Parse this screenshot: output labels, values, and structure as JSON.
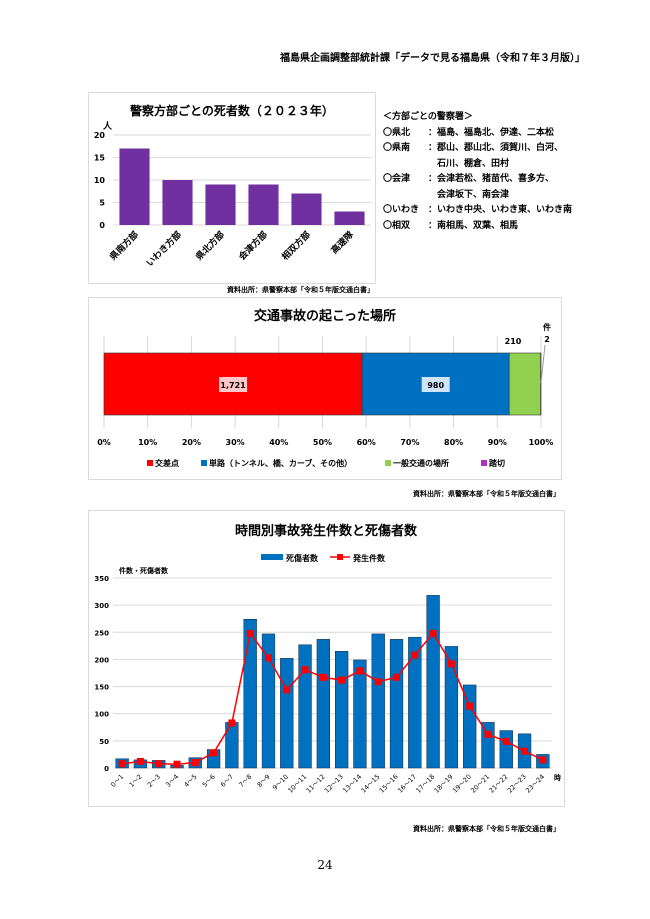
{
  "header": "福島県企画調整部統計課「データで見る福島県（令和７年３月版）」",
  "page_number": "24",
  "stations": {
    "title": "＜方部ごとの警察署＞",
    "rows": [
      {
        "key": "〇県北",
        "val": "：福島、福島北、伊達、二本松"
      },
      {
        "key": "〇県南",
        "val": "：郡山、郡山北、須賀川、白河、"
      },
      {
        "key": "",
        "val": "　石川、棚倉、田村"
      },
      {
        "key": "〇会津",
        "val": "：会津若松、猪苗代、喜多方、"
      },
      {
        "key": "",
        "val": "　会津坂下、南会津"
      },
      {
        "key": "〇いわき",
        "val": "：いわき中央、いわき東、いわき南"
      },
      {
        "key": "〇相双",
        "val": "：南相馬、双葉、相馬"
      }
    ]
  },
  "chart_data": [
    {
      "type": "bar",
      "title": "警察方部ごとの死者数（２０２３年）",
      "ylabel": "人",
      "ylim": [
        0,
        20
      ],
      "yticks": [
        0,
        5,
        10,
        15,
        20
      ],
      "categories": [
        "県南方部",
        "いわき方部",
        "県北方部",
        "会津方部",
        "相双方部",
        "高速隊"
      ],
      "values": [
        17,
        10,
        9,
        9,
        7,
        3
      ],
      "color": "#7030a0",
      "grid": true,
      "source": "資料出所：県警察本部「令和５年版交通白書」"
    },
    {
      "type": "bar",
      "stacked": "100%",
      "orientation": "horizontal",
      "title": "交通事故の起こった場所",
      "unit": "件",
      "series": [
        {
          "name": "交差点",
          "value": 1721,
          "color": "#ff0000",
          "label": "1,721"
        },
        {
          "name": "単路（トンネル、橋、カーブ、その他）",
          "value": 980,
          "color": "#0070c0",
          "label": "980"
        },
        {
          "name": "一般交通の場所",
          "value": 210,
          "color": "#92d050",
          "label": "210"
        },
        {
          "name": "踏切",
          "value": 2,
          "color": "#b030c0",
          "label": "2"
        }
      ],
      "xticks": [
        "0%",
        "10%",
        "20%",
        "30%",
        "40%",
        "50%",
        "60%",
        "70%",
        "80%",
        "90%",
        "100%"
      ],
      "legend": "bottom",
      "source": "資料出所：県警察本部「令和５年版交通白書」"
    },
    {
      "type": "bar+line",
      "title": "時間別事故発生件数と死傷者数",
      "ylabel": "件数・死傷者数",
      "xunit": "時",
      "ylim": [
        0,
        350
      ],
      "yticks": [
        0,
        50,
        100,
        150,
        200,
        250,
        300,
        350
      ],
      "legend": "top",
      "categories": [
        "0～1",
        "1～2",
        "2～3",
        "3～4",
        "4～5",
        "5～6",
        "6～7",
        "7～8",
        "8～9",
        "9～10",
        "10～11",
        "11～12",
        "12～13",
        "13～14",
        "14～15",
        "15～16",
        "16～17",
        "17～18",
        "18～19",
        "19～20",
        "20～21",
        "21～22",
        "22～23",
        "23～24"
      ],
      "series": [
        {
          "name": "死傷者数",
          "type": "bar",
          "color": "#0070c0",
          "values": [
            17,
            15,
            14,
            5,
            19,
            34,
            84,
            274,
            247,
            202,
            227,
            237,
            215,
            199,
            247,
            237,
            241,
            318,
            224,
            153,
            84,
            69,
            63,
            25
          ]
        },
        {
          "name": "発生件数",
          "type": "line",
          "color": "#ff0000",
          "values": [
            8,
            12,
            8,
            7,
            10,
            28,
            83,
            248,
            203,
            144,
            181,
            167,
            162,
            179,
            159,
            167,
            208,
            248,
            192,
            114,
            62,
            49,
            31,
            15
          ]
        }
      ],
      "source": "資料出所：県警察本部「令和５年版交通白書」"
    }
  ]
}
